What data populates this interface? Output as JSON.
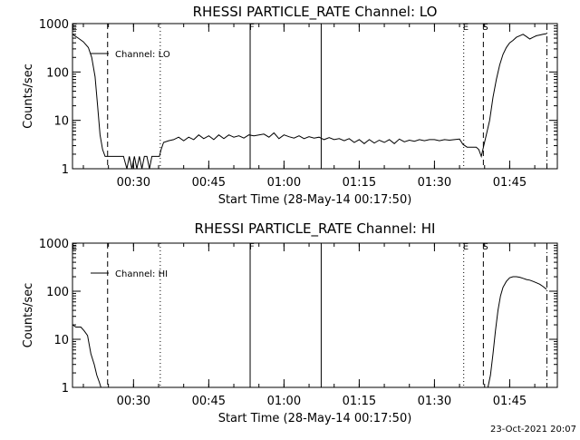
{
  "footer_date": "23-Oct-2021 20:07",
  "chart_data": [
    {
      "type": "line",
      "title": "RHESSI PARTICLE_RATE Channel: LO",
      "xlabel": "Start Time (28-May-14 00:17:50)",
      "ylabel": "Counts/sec",
      "yscale": "log",
      "ylim": [
        1,
        1000
      ],
      "xlim": [
        "00:17:50",
        "01:54:30"
      ],
      "ytick_labels": [
        "1",
        "10",
        "100",
        "1000"
      ],
      "xtick_labels": [
        "00:30",
        "00:45",
        "01:00",
        "01:15",
        "01:30",
        "01:45"
      ],
      "legend": {
        "label": "Channel: LO",
        "placement": "top-left"
      },
      "markers": [
        {
          "time": "00:17:50",
          "label": "E",
          "style": "dash-dot"
        },
        {
          "time": "00:24:50",
          "label": "",
          "style": "dashed"
        },
        {
          "time": "00:35:20",
          "label": "",
          "style": "dotted"
        },
        {
          "time": "00:53:15",
          "label": "F",
          "style": "solid"
        },
        {
          "time": "01:07:25",
          "label": "",
          "style": "solid"
        },
        {
          "time": "01:35:50",
          "label": "E",
          "style": "dotted"
        },
        {
          "time": "01:39:45",
          "label": "S",
          "style": "dashed"
        },
        {
          "time": "01:52:25",
          "label": "",
          "style": "dash-dot"
        }
      ],
      "series": [
        {
          "x": [
            "00:17:50",
            "00:19:00",
            "00:20:00",
            "00:21:00",
            "00:21:40",
            "00:22:20",
            "00:22:50",
            "00:23:20",
            "00:23:50",
            "00:24:20",
            "00:24:50",
            "00:25:20",
            "00:26:00",
            "00:27:00",
            "00:28:00",
            "00:28:40",
            "00:29:10",
            "00:29:40",
            "00:30:10",
            "00:30:40",
            "00:31:10",
            "00:31:40",
            "00:32:10",
            "00:32:40",
            "00:33:10",
            "00:33:40",
            "00:34:10",
            "00:34:40",
            "00:35:10",
            "00:35:30",
            "00:36:00",
            "00:37:00",
            "00:38:00",
            "00:39:00",
            "00:40:00",
            "00:41:00",
            "00:42:00",
            "00:43:00",
            "00:44:00",
            "00:45:00",
            "00:46:00",
            "00:47:00",
            "00:48:00",
            "00:49:00",
            "00:50:00",
            "00:51:00",
            "00:52:00",
            "00:53:00",
            "00:54:00",
            "00:55:00",
            "00:56:00",
            "00:57:00",
            "00:58:00",
            "00:59:00",
            "01:00:00",
            "01:01:00",
            "01:02:00",
            "01:03:00",
            "01:04:00",
            "01:05:00",
            "01:06:00",
            "01:07:00",
            "01:08:00",
            "01:09:00",
            "01:10:00",
            "01:11:00",
            "01:12:00",
            "01:13:00",
            "01:14:00",
            "01:15:00",
            "01:16:00",
            "01:17:00",
            "01:18:00",
            "01:19:00",
            "01:20:00",
            "01:21:00",
            "01:22:00",
            "01:23:00",
            "01:24:00",
            "01:25:00",
            "01:26:00",
            "01:27:00",
            "01:28:00",
            "01:29:00",
            "01:30:00",
            "01:31:00",
            "01:32:00",
            "01:33:00",
            "01:34:00",
            "01:35:00",
            "01:35:40",
            "01:36:30",
            "01:37:30",
            "01:38:20",
            "01:38:50",
            "01:39:20",
            "01:39:50",
            "01:40:20",
            "01:41:00",
            "01:41:40",
            "01:42:20",
            "01:43:00",
            "01:43:40",
            "01:44:20",
            "01:45:00",
            "01:45:40",
            "01:46:20",
            "01:47:00",
            "01:47:40",
            "01:48:20",
            "01:49:00",
            "01:49:40",
            "01:50:20",
            "01:51:00",
            "01:51:40",
            "01:52:20"
          ],
          "y": [
            600,
            500,
            420,
            320,
            200,
            80,
            20,
            5,
            2.5,
            1.8,
            1.8,
            1.8,
            1.8,
            1.8,
            1.8,
            1,
            1.8,
            1,
            1.8,
            1,
            1.8,
            1,
            1.8,
            1.8,
            1,
            1.8,
            1.8,
            1.8,
            1.8,
            2.5,
            3.5,
            3.8,
            4,
            4.5,
            3.8,
            4.5,
            4,
            5,
            4.2,
            4.8,
            4,
            5,
            4.2,
            5,
            4.5,
            4.8,
            4.3,
            5,
            4.8,
            5,
            5.2,
            4.5,
            5.5,
            4.2,
            5,
            4.6,
            4.3,
            4.8,
            4.2,
            4.6,
            4.3,
            4.5,
            4,
            4.4,
            4,
            4.2,
            3.8,
            4.2,
            3.5,
            4,
            3.3,
            4,
            3.4,
            3.9,
            3.5,
            4,
            3.3,
            4.1,
            3.6,
            3.9,
            3.7,
            4,
            3.8,
            4,
            4,
            3.8,
            4,
            3.9,
            4,
            4.1,
            3.2,
            2.8,
            2.8,
            2.8,
            2.5,
            1.8,
            3,
            5,
            10,
            30,
            70,
            140,
            230,
            320,
            400,
            450,
            520,
            560,
            600,
            540,
            480,
            520,
            560,
            580,
            600,
            620
          ]
        }
      ]
    },
    {
      "type": "line",
      "title": "RHESSI PARTICLE_RATE Channel: HI",
      "xlabel": "Start Time (28-May-14 00:17:50)",
      "ylabel": "Counts/sec",
      "yscale": "log",
      "ylim": [
        1,
        1000
      ],
      "xlim": [
        "00:17:50",
        "01:54:30"
      ],
      "ytick_labels": [
        "1",
        "10",
        "100",
        "1000"
      ],
      "xtick_labels": [
        "00:30",
        "00:45",
        "01:00",
        "01:15",
        "01:30",
        "01:45"
      ],
      "legend": {
        "label": "Channel: HI",
        "placement": "top-left"
      },
      "markers": [
        {
          "time": "00:17:50",
          "label": "E",
          "style": "dash-dot"
        },
        {
          "time": "00:24:50",
          "label": "",
          "style": "dashed"
        },
        {
          "time": "00:35:20",
          "label": "",
          "style": "dotted"
        },
        {
          "time": "00:53:15",
          "label": "F",
          "style": "solid"
        },
        {
          "time": "01:07:25",
          "label": "",
          "style": "solid"
        },
        {
          "time": "01:35:50",
          "label": "E",
          "style": "dotted"
        },
        {
          "time": "01:39:45",
          "label": "S",
          "style": "dashed"
        },
        {
          "time": "01:52:25",
          "label": "",
          "style": "dash-dot"
        }
      ],
      "series": [
        {
          "x": [
            "00:17:50",
            "00:18:30",
            "00:19:30",
            "00:20:10",
            "00:20:50",
            "00:21:30",
            "00:22:10",
            "00:22:40",
            "00:23:10",
            "00:23:30"
          ],
          "y": [
            20,
            18,
            18,
            15,
            12,
            5,
            3,
            1.8,
            1.3,
            1
          ]
        },
        {
          "x": [
            "01:40:40",
            "01:41:10",
            "01:41:40",
            "01:42:10",
            "01:42:40",
            "01:43:10",
            "01:43:40",
            "01:44:20",
            "01:45:00",
            "01:45:40",
            "01:46:20",
            "01:47:00",
            "01:47:40",
            "01:48:20",
            "01:49:00",
            "01:49:40",
            "01:50:20",
            "01:51:00",
            "01:51:40",
            "01:52:20"
          ],
          "y": [
            1,
            1.8,
            5,
            15,
            40,
            80,
            120,
            160,
            190,
            200,
            200,
            195,
            185,
            175,
            170,
            160,
            150,
            140,
            125,
            110
          ]
        }
      ]
    }
  ]
}
